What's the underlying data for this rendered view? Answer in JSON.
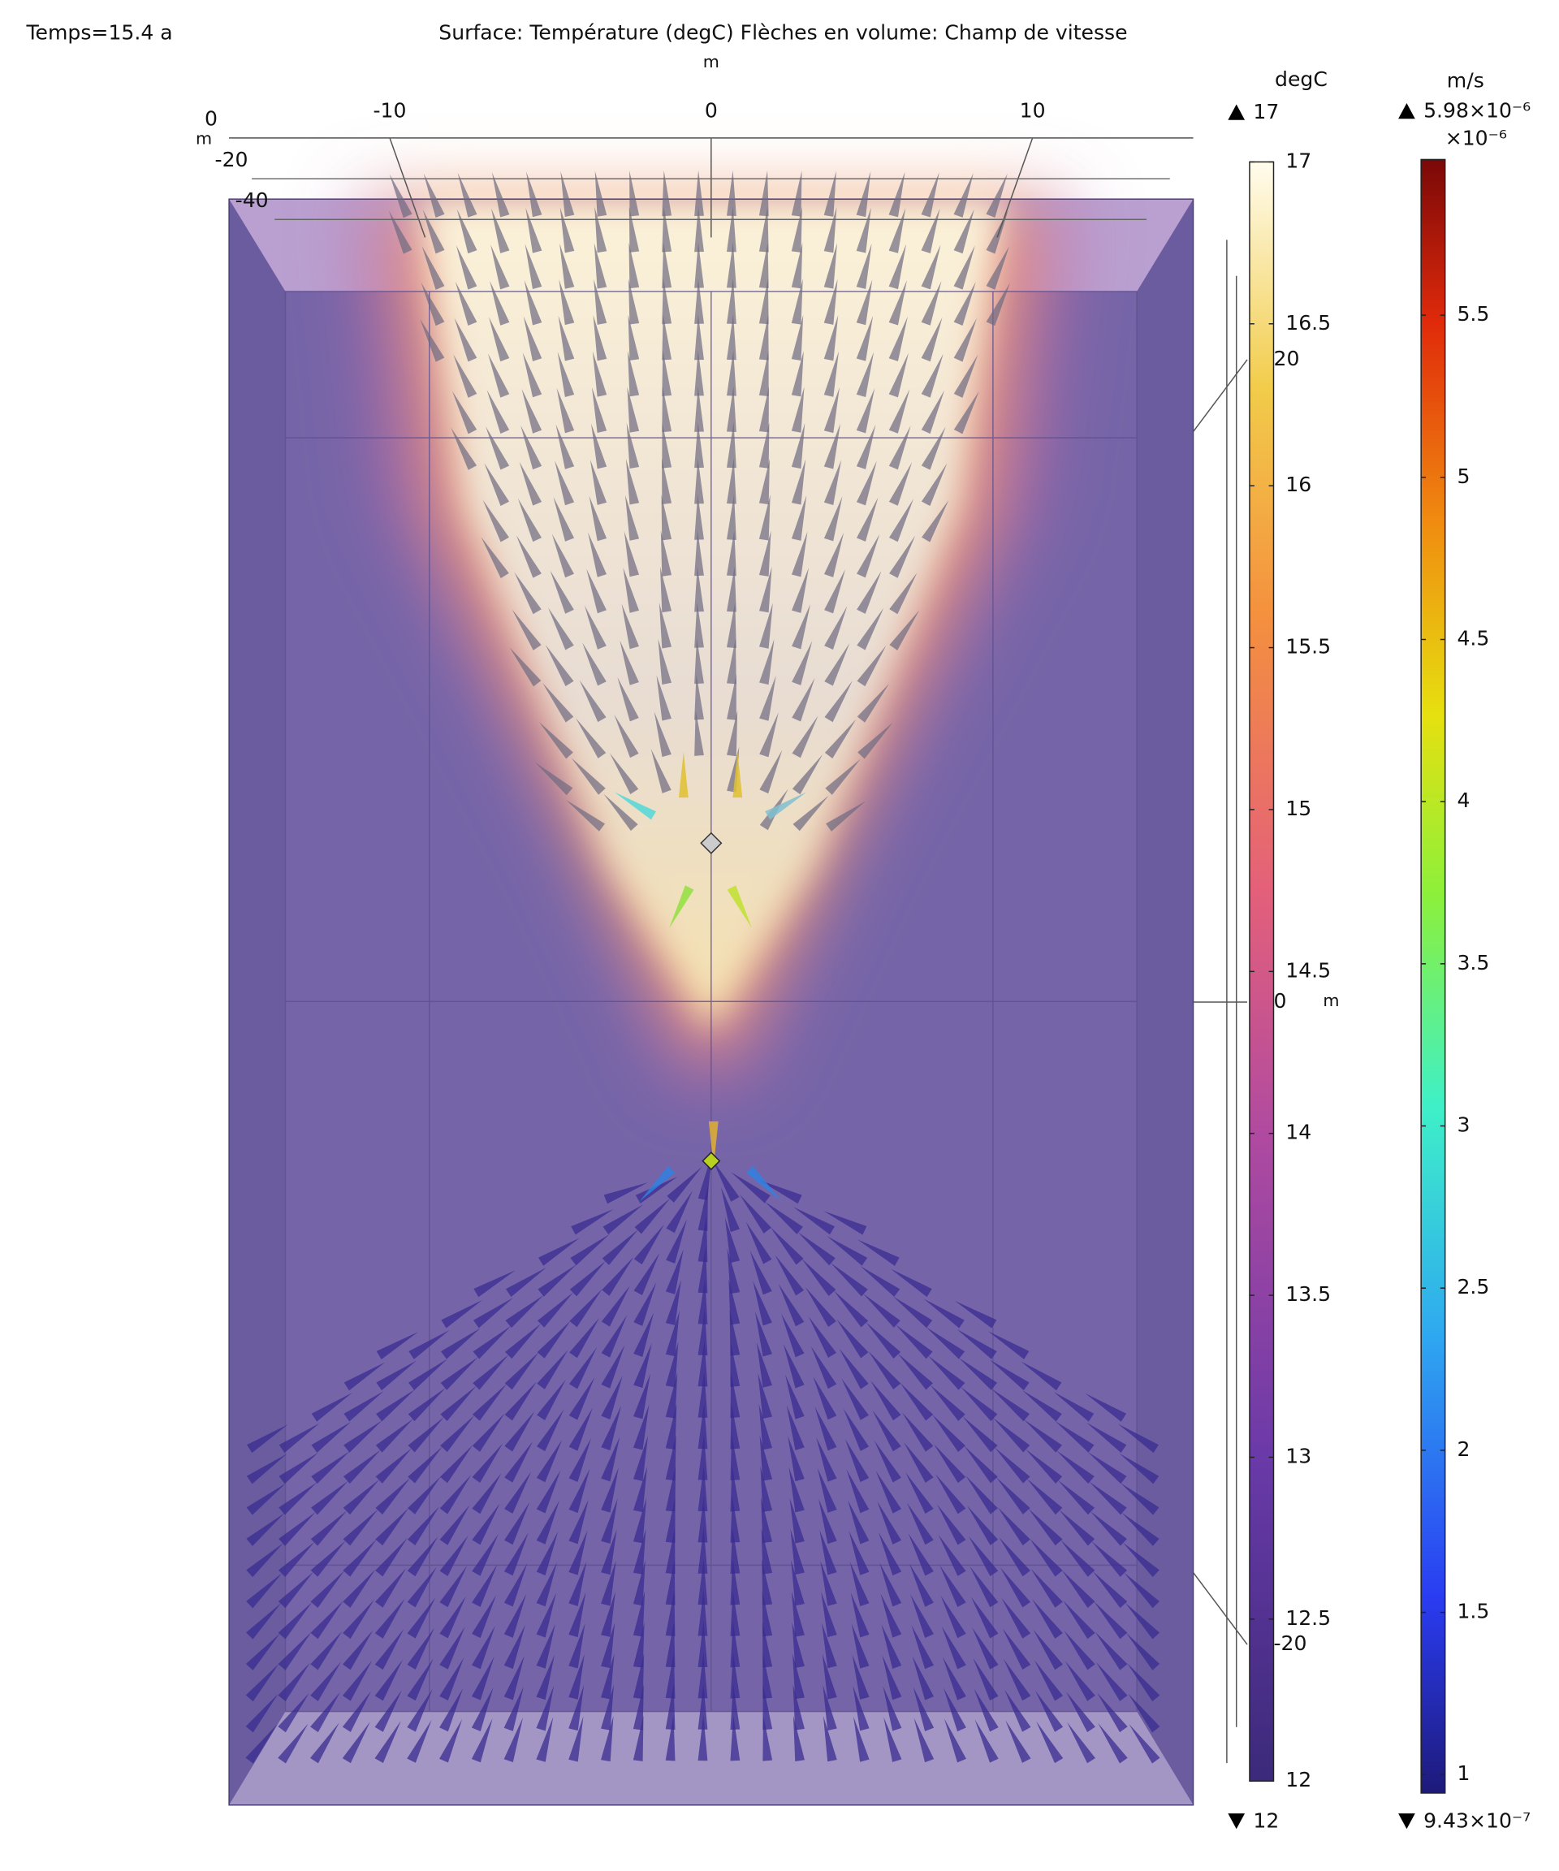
{
  "chart_data": {
    "type": "field3d",
    "time_label": "Temps=15.4 a",
    "title": "Surface: Température (degC)  Flèches en volume: Champ de vitesse",
    "x_unit": "m",
    "xlim": [
      -15,
      15
    ],
    "xticks": [
      -10,
      0,
      10
    ],
    "y_unit": "m",
    "ylim": [
      0,
      -40
    ],
    "yticks": [
      0,
      -20,
      -40
    ],
    "z_unit": "m",
    "zlim": [
      -25,
      25
    ],
    "zticks": [
      20,
      0,
      -20
    ],
    "colorbars": [
      {
        "name": "degC",
        "colormap": "thermal",
        "max_label": "17",
        "min_label": "12",
        "lim": [
          12,
          17
        ],
        "ticks": [
          12,
          12.5,
          13,
          13.5,
          14,
          14.5,
          15,
          15.5,
          16,
          16.5,
          17
        ]
      },
      {
        "name": "m/s",
        "colormap": "rainbow",
        "max_label": "5.98×10⁻⁶",
        "min_label": "9.43×10⁻⁷",
        "multiplier": "×10⁻⁶",
        "lim": [
          0.943,
          5.98
        ],
        "ticks": [
          1,
          1.5,
          2,
          2.5,
          3,
          3.5,
          4,
          4.5,
          5,
          5.5
        ]
      }
    ]
  }
}
